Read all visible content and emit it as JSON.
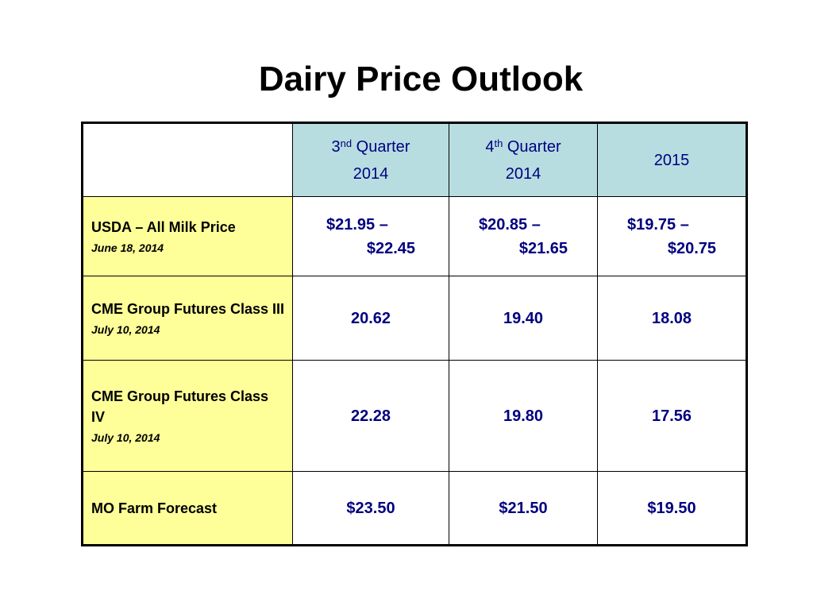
{
  "title": "Dairy Price Outlook",
  "table": {
    "headers": [
      {
        "main": "3",
        "sup": "nd",
        "rest": " Quarter",
        "year": "2014"
      },
      {
        "main": "4",
        "sup": "th",
        "rest": " Quarter",
        "year": "2014"
      },
      {
        "main": "2015"
      }
    ],
    "rows": [
      {
        "label": "USDA – All Milk Price",
        "date": "June 18, 2014",
        "values": [
          {
            "low": "$21.95 –",
            "high": "$22.45"
          },
          {
            "low": "$20.85 –",
            "high": "$21.65"
          },
          {
            "low": "$19.75 –",
            "high": "$20.75"
          }
        ]
      },
      {
        "label": "CME Group Futures Class III",
        "date": "July 10, 2014",
        "values": [
          "20.62",
          "19.40",
          "18.08"
        ]
      },
      {
        "label": "CME Group Futures Class IV",
        "date": "July 10, 2014",
        "values": [
          "22.28",
          "19.80",
          "17.56"
        ]
      },
      {
        "label": "MO Farm Forecast",
        "values": [
          "$23.50",
          "$21.50",
          "$19.50"
        ]
      }
    ]
  },
  "colors": {
    "header_bg": "#b7dde0",
    "label_bg": "#ffff99",
    "value_text": "#000080"
  }
}
